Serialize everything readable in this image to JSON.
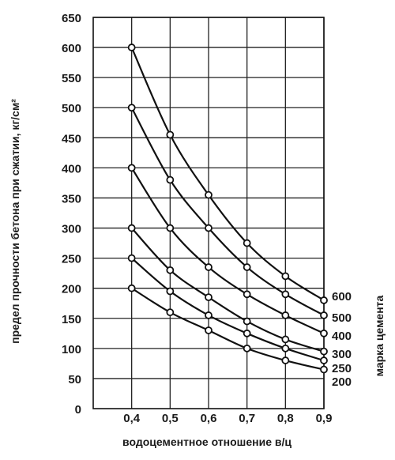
{
  "chart_data": {
    "type": "line",
    "xlabel": "водоцементное отношение в/ц",
    "ylabel": "предел прочности бетона при сжатии, кг/см²",
    "legend_title": "марка цемента",
    "legend_placement": "right",
    "grid": true,
    "xlim": [
      0.3,
      0.9
    ],
    "ylim": [
      0,
      650
    ],
    "x_ticks": [
      "0,4",
      "0,5",
      "0,6",
      "0,7",
      "0,8",
      "0,9"
    ],
    "x_tick_values": [
      0.4,
      0.5,
      0.6,
      0.7,
      0.8,
      0.9
    ],
    "y_ticks": [
      "0",
      "50",
      "100",
      "150",
      "200",
      "250",
      "300",
      "350",
      "400",
      "450",
      "500",
      "550",
      "600",
      "650"
    ],
    "y_tick_values": [
      0,
      50,
      100,
      150,
      200,
      250,
      300,
      350,
      400,
      450,
      500,
      550,
      600,
      650
    ],
    "x": [
      0.4,
      0.5,
      0.6,
      0.7,
      0.8,
      0.9
    ],
    "series": [
      {
        "name": "600",
        "values": [
          600,
          455,
          355,
          275,
          220,
          180
        ]
      },
      {
        "name": "500",
        "values": [
          500,
          380,
          300,
          235,
          190,
          155
        ]
      },
      {
        "name": "400",
        "values": [
          400,
          300,
          235,
          190,
          155,
          125
        ]
      },
      {
        "name": "300",
        "values": [
          300,
          230,
          185,
          145,
          115,
          95
        ]
      },
      {
        "name": "250",
        "values": [
          250,
          195,
          155,
          125,
          100,
          80
        ]
      },
      {
        "name": "200",
        "values": [
          200,
          160,
          130,
          100,
          80,
          65
        ]
      }
    ]
  }
}
